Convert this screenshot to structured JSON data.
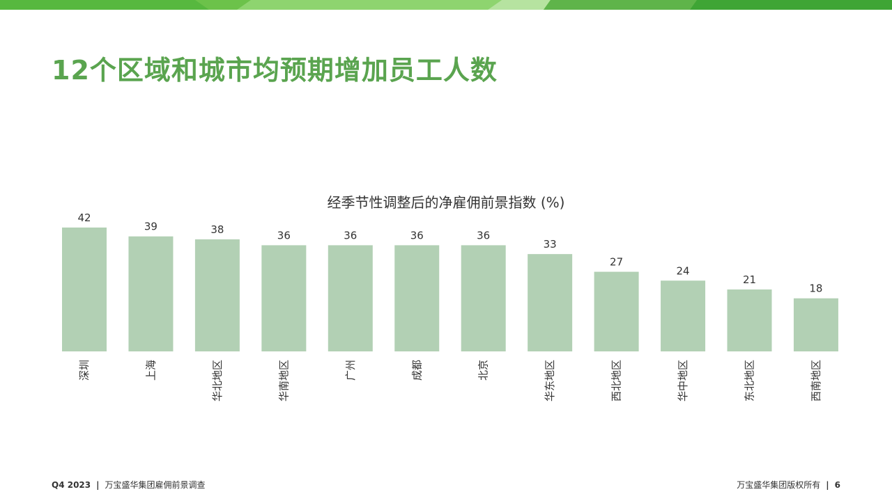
{
  "page": {
    "title": "12个区域和城市均预期增加员工人数"
  },
  "footer": {
    "left_quarter": "Q4 2023",
    "left_text": "万宝盛华集团雇佣前景调查",
    "right_text": "万宝盛华集团版权所有",
    "page_number": "6",
    "separator": "|"
  },
  "colors": {
    "title": "#5aa44f",
    "bar": "#b2d0b4",
    "band_main": "#6cc24a",
    "band_light": "#a8dc92",
    "band_dark": "#3fa535"
  },
  "chart_data": {
    "type": "bar",
    "title": "经季节性调整后的净雇佣前景指数 (%)",
    "categories": [
      "深圳",
      "上海",
      "华北地区",
      "华南地区",
      "广州",
      "成都",
      "北京",
      "华东地区",
      "西北地区",
      "华中地区",
      "东北地区",
      "西南地区"
    ],
    "values": [
      42,
      39,
      38,
      36,
      36,
      36,
      36,
      33,
      27,
      24,
      21,
      18
    ],
    "xlabel": "",
    "ylabel": "",
    "ylim": [
      0,
      42
    ],
    "grid": false,
    "legend": "none",
    "label_orientation": "vertical"
  }
}
